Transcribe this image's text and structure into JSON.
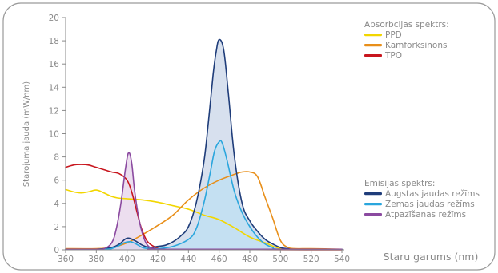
{
  "chart_data": {
    "type": "line",
    "xlabel": "Staru garums (nm)",
    "ylabel": "Starojuma jauda (mW/nm)",
    "xlim": [
      360,
      540
    ],
    "ylim": [
      0,
      20
    ],
    "x_ticks": [
      360,
      380,
      400,
      420,
      440,
      460,
      480,
      500,
      520,
      540
    ],
    "y_ticks": [
      0,
      2,
      4,
      6,
      8,
      10,
      12,
      14,
      16,
      18,
      20
    ],
    "grid": false,
    "legend_groups": [
      {
        "title": "Absorbcijas spektrs:",
        "placement": "top-right",
        "entries": [
          {
            "name": "PPD",
            "color": "#f2d600"
          },
          {
            "name": "Kamforksinons",
            "color": "#e88f1a"
          },
          {
            "name": "TPO",
            "color": "#c8161e"
          }
        ]
      },
      {
        "title": "Emisijas spektrs:",
        "placement": "bottom-right",
        "entries": [
          {
            "name": "Augstas jaudas režīms",
            "color": "#1f3d7a"
          },
          {
            "name": "Zemas jaudas režīms",
            "color": "#2aa6dd"
          },
          {
            "name": "Atpazīšanas režīms",
            "color": "#8b4aa0"
          }
        ]
      }
    ],
    "series": [
      {
        "name": "PPD",
        "group": "absorption",
        "color": "#f2d600",
        "fill": false,
        "points": [
          [
            360,
            5.2
          ],
          [
            365,
            5.0
          ],
          [
            370,
            4.9
          ],
          [
            375,
            5.0
          ],
          [
            380,
            5.15
          ],
          [
            385,
            4.9
          ],
          [
            390,
            4.6
          ],
          [
            395,
            4.45
          ],
          [
            400,
            4.4
          ],
          [
            410,
            4.3
          ],
          [
            420,
            4.1
          ],
          [
            430,
            3.8
          ],
          [
            440,
            3.5
          ],
          [
            450,
            3.0
          ],
          [
            460,
            2.6
          ],
          [
            470,
            1.9
          ],
          [
            480,
            1.1
          ],
          [
            490,
            0.6
          ],
          [
            500,
            0.1
          ],
          [
            510,
            0.05
          ],
          [
            520,
            0.05
          ],
          [
            540,
            0.05
          ]
        ]
      },
      {
        "name": "Kamforksinons",
        "group": "absorption",
        "color": "#e88f1a",
        "fill": false,
        "points": [
          [
            360,
            0.1
          ],
          [
            380,
            0.1
          ],
          [
            390,
            0.2
          ],
          [
            400,
            0.6
          ],
          [
            410,
            1.3
          ],
          [
            420,
            2.1
          ],
          [
            430,
            3.0
          ],
          [
            440,
            4.3
          ],
          [
            450,
            5.3
          ],
          [
            460,
            6.0
          ],
          [
            470,
            6.5
          ],
          [
            475,
            6.7
          ],
          [
            480,
            6.7
          ],
          [
            485,
            6.3
          ],
          [
            490,
            4.5
          ],
          [
            495,
            2.7
          ],
          [
            500,
            0.8
          ],
          [
            505,
            0.2
          ],
          [
            510,
            0.1
          ],
          [
            520,
            0.1
          ],
          [
            540,
            0.05
          ]
        ]
      },
      {
        "name": "TPO",
        "group": "absorption",
        "color": "#c8161e",
        "fill": false,
        "points": [
          [
            360,
            7.1
          ],
          [
            365,
            7.3
          ],
          [
            370,
            7.35
          ],
          [
            375,
            7.3
          ],
          [
            380,
            7.1
          ],
          [
            385,
            6.9
          ],
          [
            390,
            6.7
          ],
          [
            395,
            6.55
          ],
          [
            400,
            6.0
          ],
          [
            403,
            5.0
          ],
          [
            406,
            3.5
          ],
          [
            409,
            2.0
          ],
          [
            412,
            1.0
          ],
          [
            415,
            0.5
          ],
          [
            420,
            0.15
          ],
          [
            425,
            0.05
          ],
          [
            540,
            0.0
          ]
        ]
      },
      {
        "name": "Augstas jaudas režīms",
        "group": "emission",
        "color": "#1f3d7a",
        "fill": true,
        "fill_color": "#c9d6e8",
        "points": [
          [
            360,
            0.05
          ],
          [
            380,
            0.05
          ],
          [
            390,
            0.2
          ],
          [
            395,
            0.5
          ],
          [
            400,
            1.0
          ],
          [
            405,
            0.8
          ],
          [
            410,
            0.4
          ],
          [
            415,
            0.2
          ],
          [
            420,
            0.3
          ],
          [
            425,
            0.4
          ],
          [
            430,
            0.7
          ],
          [
            435,
            1.2
          ],
          [
            440,
            2.0
          ],
          [
            445,
            4.0
          ],
          [
            450,
            7.5
          ],
          [
            453,
            11.0
          ],
          [
            456,
            15.0
          ],
          [
            458,
            17.0
          ],
          [
            460,
            18.1
          ],
          [
            463,
            17.2
          ],
          [
            466,
            13.5
          ],
          [
            470,
            8.0
          ],
          [
            475,
            4.0
          ],
          [
            480,
            2.5
          ],
          [
            485,
            1.6
          ],
          [
            490,
            0.9
          ],
          [
            495,
            0.5
          ],
          [
            500,
            0.2
          ],
          [
            505,
            0.1
          ],
          [
            510,
            0.05
          ],
          [
            540,
            0.05
          ]
        ]
      },
      {
        "name": "Zemas jaudas režīms",
        "group": "emission",
        "color": "#2aa6dd",
        "fill": true,
        "fill_color": "#bde0f3",
        "points": [
          [
            360,
            0.05
          ],
          [
            385,
            0.05
          ],
          [
            392,
            0.2
          ],
          [
            398,
            0.6
          ],
          [
            402,
            0.7
          ],
          [
            406,
            0.5
          ],
          [
            410,
            0.2
          ],
          [
            415,
            0.1
          ],
          [
            420,
            0.1
          ],
          [
            430,
            0.3
          ],
          [
            440,
            0.9
          ],
          [
            445,
            1.8
          ],
          [
            450,
            4.0
          ],
          [
            454,
            6.5
          ],
          [
            457,
            8.5
          ],
          [
            460,
            9.3
          ],
          [
            462,
            9.2
          ],
          [
            465,
            7.8
          ],
          [
            470,
            5.0
          ],
          [
            475,
            3.2
          ],
          [
            480,
            2.0
          ],
          [
            485,
            1.1
          ],
          [
            490,
            0.5
          ],
          [
            495,
            0.2
          ],
          [
            500,
            0.05
          ],
          [
            540,
            0.05
          ]
        ]
      },
      {
        "name": "Atpazīšanas režīms",
        "group": "emission",
        "color": "#8b4aa0",
        "fill": true,
        "fill_color": "#e5d3ea",
        "points": [
          [
            360,
            0.05
          ],
          [
            380,
            0.05
          ],
          [
            385,
            0.1
          ],
          [
            390,
            0.6
          ],
          [
            393,
            1.8
          ],
          [
            396,
            4.0
          ],
          [
            399,
            7.0
          ],
          [
            401,
            8.35
          ],
          [
            403,
            7.5
          ],
          [
            405,
            5.0
          ],
          [
            408,
            2.5
          ],
          [
            411,
            1.0
          ],
          [
            414,
            0.3
          ],
          [
            418,
            0.1
          ],
          [
            425,
            0.05
          ],
          [
            540,
            0.05
          ]
        ]
      }
    ]
  }
}
